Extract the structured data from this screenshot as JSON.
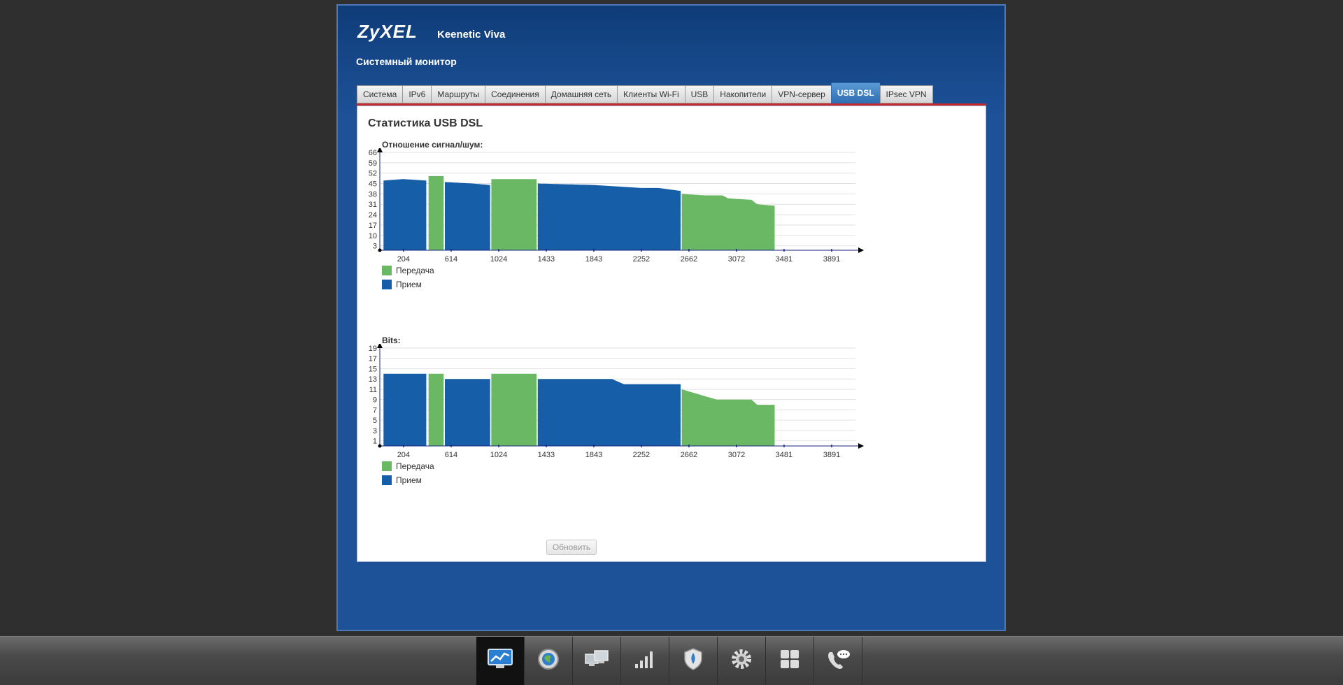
{
  "header": {
    "logo": "ZyXEL",
    "model": "Keenetic Viva",
    "page_title": "Системный монитор"
  },
  "tabs": [
    {
      "label": "Система",
      "active": false
    },
    {
      "label": "IPv6",
      "active": false
    },
    {
      "label": "Маршруты",
      "active": false
    },
    {
      "label": "Соединения",
      "active": false
    },
    {
      "label": "Домашняя сеть",
      "active": false
    },
    {
      "label": "Клиенты Wi-Fi",
      "active": false
    },
    {
      "label": "USB",
      "active": false
    },
    {
      "label": "Накопители",
      "active": false
    },
    {
      "label": "VPN-сервер",
      "active": false
    },
    {
      "label": "USB DSL",
      "active": true
    },
    {
      "label": "IPsec VPN",
      "active": false
    }
  ],
  "panel": {
    "title": "Статистика USB DSL",
    "refresh_label": "Обновить"
  },
  "colors": {
    "tx": "#6bb864",
    "rx": "#175ea8",
    "accent_tab": "#2f6fb3",
    "red_line": "#c52a33"
  },
  "legend": {
    "tx": "Передача",
    "rx": "Прием"
  },
  "taskbar": [
    {
      "icon": "monitor-chart-icon",
      "active": true
    },
    {
      "icon": "internet-globe-icon",
      "active": false
    },
    {
      "icon": "home-network-icon",
      "active": false
    },
    {
      "icon": "wifi-signal-icon",
      "active": false
    },
    {
      "icon": "security-shield-icon",
      "active": false
    },
    {
      "icon": "system-gear-icon",
      "active": false
    },
    {
      "icon": "apps-grid-icon",
      "active": false
    },
    {
      "icon": "phone-support-icon",
      "active": false
    }
  ],
  "chart_data": [
    {
      "type": "area",
      "title": "Отношение сигнал/шум:",
      "xticks": [
        204,
        614,
        1024,
        1433,
        1843,
        2252,
        2662,
        3072,
        3481,
        3891
      ],
      "yticks": [
        3,
        10,
        17,
        24,
        31,
        38,
        45,
        52,
        59,
        66
      ],
      "ylim": [
        0,
        66
      ],
      "xlim": [
        0,
        4096
      ],
      "series": [
        {
          "name": "Прием",
          "segments": [
            [
              32,
              400
            ],
            [
              560,
              950
            ],
            [
              1360,
              2590
            ]
          ],
          "x": [
            32,
            200,
            400,
            560,
            800,
            950,
            1360,
            1843,
            2252,
            2400,
            2590
          ],
          "y": [
            47,
            48,
            47,
            46,
            45,
            44,
            45,
            44,
            42,
            42,
            40
          ]
        },
        {
          "name": "Передача",
          "segments": [
            [
              420,
              550
            ],
            [
              960,
              1350
            ],
            [
              2600,
              3400
            ]
          ],
          "x": [
            420,
            550,
            960,
            1350,
            2600,
            2800,
            2950,
            3000,
            3200,
            3250,
            3400
          ],
          "y": [
            50,
            50,
            48,
            48,
            38,
            37,
            37,
            35,
            34,
            31,
            30
          ]
        }
      ],
      "grid": true
    },
    {
      "type": "area",
      "title": "Bits:",
      "xticks": [
        204,
        614,
        1024,
        1433,
        1843,
        2252,
        2662,
        3072,
        3481,
        3891
      ],
      "yticks": [
        1,
        3,
        5,
        7,
        9,
        11,
        13,
        15,
        17,
        19
      ],
      "ylim": [
        0,
        19
      ],
      "xlim": [
        0,
        4096
      ],
      "series": [
        {
          "name": "Прием",
          "segments": [
            [
              32,
              400
            ],
            [
              560,
              950
            ],
            [
              1360,
              2590
            ]
          ],
          "x": [
            32,
            400,
            560,
            950,
            1360,
            2000,
            2100,
            2590
          ],
          "y": [
            14,
            14,
            13,
            13,
            13,
            13,
            12,
            12
          ]
        },
        {
          "name": "Передача",
          "segments": [
            [
              420,
              550
            ],
            [
              960,
              1350
            ],
            [
              2600,
              3400
            ]
          ],
          "x": [
            420,
            550,
            960,
            1350,
            2600,
            2750,
            2900,
            3200,
            3250,
            3400
          ],
          "y": [
            14,
            14,
            14,
            14,
            11,
            10,
            9,
            9,
            8,
            8
          ]
        }
      ],
      "grid": true
    }
  ]
}
